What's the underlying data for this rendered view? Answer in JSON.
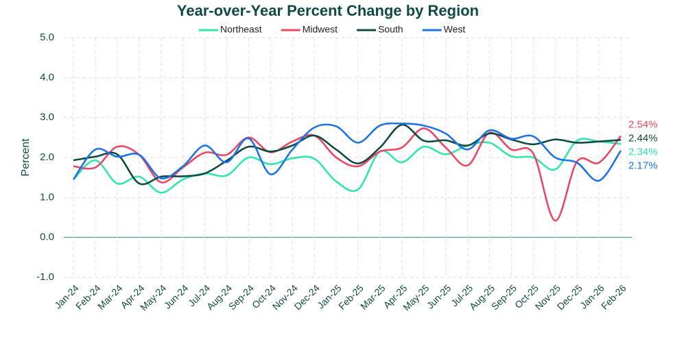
{
  "chart_data": {
    "type": "line",
    "title": "Year-over-Year Percent Change by Region",
    "y_label": "Percent",
    "categories": [
      "Jan-24",
      "Feb-24",
      "Mar-24",
      "Apr-24",
      "May-24",
      "Jun-24",
      "Jul-24",
      "Aug-24",
      "Sep-24",
      "Oct-24",
      "Nov-24",
      "Dec-24",
      "Jan-25",
      "Feb-25",
      "Mar-25",
      "Apr-25",
      "May-25",
      "Jun-25",
      "Jul-25",
      "Aug-25",
      "Sep-25",
      "Oct-25",
      "Nov-25",
      "Dec-25",
      "Jan-26",
      "Feb-26"
    ],
    "series": [
      {
        "name": "Northeast",
        "color": "#2ee6ae",
        "values": [
          1.45,
          1.93,
          1.35,
          1.52,
          1.12,
          1.45,
          1.6,
          1.55,
          2.0,
          1.83,
          1.98,
          1.97,
          1.4,
          1.2,
          2.15,
          1.88,
          2.27,
          2.08,
          2.3,
          2.37,
          2.03,
          2.0,
          1.7,
          2.42,
          2.4,
          2.34
        ],
        "value_labels": [
          null,
          null,
          null,
          null,
          null,
          null,
          null,
          null,
          null,
          null,
          null,
          null,
          null,
          null,
          null,
          null,
          null,
          null,
          null,
          null,
          null,
          null,
          null,
          null,
          null,
          "2.34%"
        ]
      },
      {
        "name": "Midwest",
        "color": "#ea4763",
        "values": [
          1.78,
          1.75,
          2.27,
          2.07,
          1.38,
          1.75,
          2.12,
          2.07,
          2.5,
          2.13,
          2.4,
          2.55,
          2.0,
          1.78,
          2.15,
          2.25,
          2.73,
          2.25,
          1.8,
          2.62,
          2.2,
          2.1,
          0.42,
          1.9,
          1.87,
          2.54
        ],
        "value_labels": [
          null,
          null,
          null,
          null,
          null,
          null,
          null,
          null,
          null,
          null,
          null,
          null,
          null,
          null,
          null,
          null,
          null,
          null,
          null,
          null,
          null,
          null,
          null,
          null,
          null,
          "2.54%"
        ]
      },
      {
        "name": "South",
        "color": "#0f4a44",
        "values": [
          1.93,
          2.02,
          2.08,
          1.35,
          1.52,
          1.53,
          1.6,
          1.92,
          2.27,
          2.15,
          2.3,
          2.55,
          2.2,
          1.85,
          2.25,
          2.82,
          2.42,
          2.43,
          2.3,
          2.6,
          2.45,
          2.33,
          2.45,
          2.37,
          2.4,
          2.44
        ],
        "value_labels": [
          null,
          null,
          null,
          null,
          null,
          null,
          null,
          null,
          null,
          null,
          null,
          null,
          null,
          null,
          null,
          null,
          null,
          null,
          null,
          null,
          null,
          null,
          null,
          null,
          null,
          "2.44%"
        ]
      },
      {
        "name": "West",
        "color": "#1c72e6",
        "values": [
          1.45,
          2.2,
          2.02,
          2.07,
          1.48,
          1.78,
          2.3,
          1.88,
          2.48,
          1.58,
          2.2,
          2.75,
          2.78,
          2.37,
          2.8,
          2.85,
          2.8,
          2.6,
          2.2,
          2.68,
          2.47,
          2.53,
          2.0,
          1.87,
          1.42,
          2.17
        ],
        "value_labels": [
          null,
          null,
          null,
          null,
          null,
          null,
          null,
          null,
          null,
          null,
          null,
          null,
          null,
          null,
          null,
          null,
          null,
          null,
          null,
          null,
          null,
          null,
          null,
          null,
          null,
          "2.17%"
        ]
      }
    ],
    "ylim": [
      -1,
      5
    ],
    "yticks": [
      {
        "value": -1,
        "label": "-1.0"
      },
      {
        "value": 0,
        "label": "0.0"
      },
      {
        "value": 1,
        "label": "1.0"
      },
      {
        "value": 2,
        "label": "2.0"
      },
      {
        "value": 3,
        "label": "3.0"
      },
      {
        "value": 4,
        "label": "4.0"
      },
      {
        "value": 5,
        "label": "5.0"
      }
    ],
    "grid": true
  }
}
